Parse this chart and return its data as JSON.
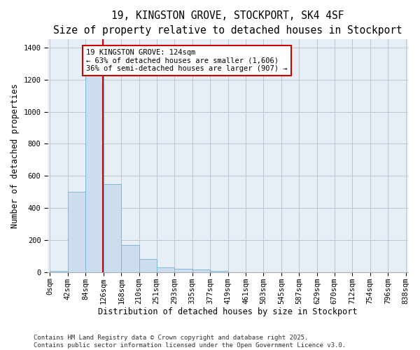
{
  "title": "19, KINGSTON GROVE, STOCKPORT, SK4 4SF",
  "subtitle": "Size of property relative to detached houses in Stockport",
  "xlabel": "Distribution of detached houses by size in Stockport",
  "ylabel": "Number of detached properties",
  "footnote1": "Contains HM Land Registry data © Crown copyright and database right 2025.",
  "footnote2": "Contains public sector information licensed under the Open Government Licence v3.0.",
  "bin_edges": [
    0,
    42,
    84,
    126,
    168,
    210,
    251,
    293,
    335,
    377,
    419,
    461,
    503,
    545,
    587,
    629,
    670,
    712,
    754,
    796,
    838
  ],
  "bar_heights": [
    10,
    500,
    1250,
    550,
    170,
    80,
    30,
    20,
    15,
    10,
    0,
    0,
    0,
    0,
    0,
    0,
    0,
    0,
    0,
    0
  ],
  "bar_color": "#ccddef",
  "bar_edge_color": "#7fb8d8",
  "grid_color": "#b8c8d8",
  "bg_color": "#e8eef5",
  "red_line_x": 124,
  "red_line_color": "#cc0000",
  "annotation_line1": "19 KINGSTON GROVE: 124sqm",
  "annotation_line2": "← 63% of detached houses are smaller (1,606)",
  "annotation_line3": "36% of semi-detached houses are larger (907) →",
  "annotation_box_color": "#cc0000",
  "ylim": [
    0,
    1450
  ],
  "yticks": [
    0,
    200,
    400,
    600,
    800,
    1000,
    1200,
    1400
  ],
  "title_fontsize": 10.5,
  "xlabel_fontsize": 8.5,
  "ylabel_fontsize": 8.5,
  "tick_fontsize": 7.5,
  "annot_fontsize": 7.5,
  "footnote_fontsize": 6.5
}
